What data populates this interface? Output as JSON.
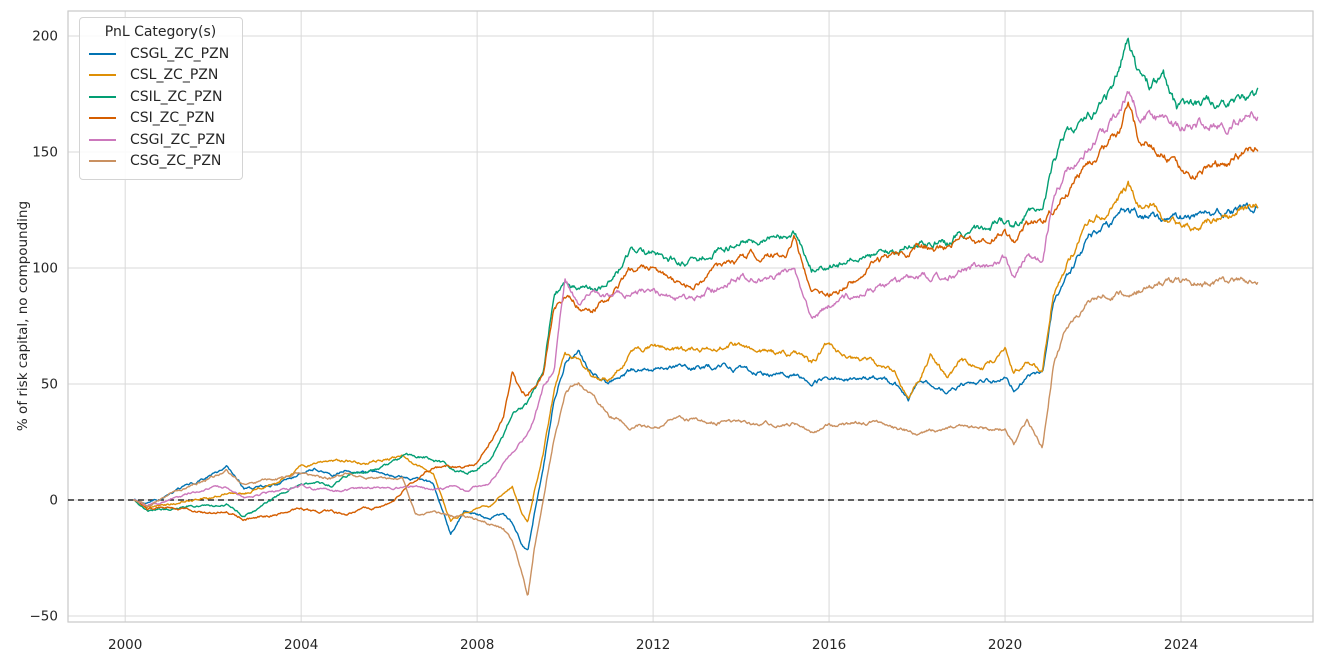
{
  "figure": {
    "background": "#ffffff",
    "grid_color": "#d9d9d9",
    "spine_color": "#c9c9c9",
    "text_color": "#262626"
  },
  "legend": {
    "title": "PnL Category(s)"
  },
  "chart_data": {
    "type": "line",
    "title": "",
    "xlabel": "",
    "ylabel": "% of risk capital, no compounding",
    "xlim": [
      1998.7,
      2027.0
    ],
    "ylim": [
      -52.6,
      210.8
    ],
    "x_ticks": [
      2000,
      2004,
      2008,
      2012,
      2016,
      2020,
      2024
    ],
    "y_ticks": [
      -50,
      0,
      50,
      100,
      150,
      200
    ],
    "grid": true,
    "legend_position": "upper left",
    "legend_title": "PnL Category(s)",
    "zero_line": {
      "y": 0,
      "style": "dashed",
      "color": "#000000"
    },
    "x": [
      2000.2,
      2000.5,
      2001,
      2001.5,
      2002,
      2002.3,
      2002.7,
      2003,
      2003.5,
      2004,
      2004.3,
      2004.7,
      2005,
      2005.5,
      2006,
      2006.3,
      2006.6,
      2007,
      2007.4,
      2007.7,
      2008,
      2008.3,
      2008.6,
      2008.8,
      2009,
      2009.15,
      2009.3,
      2009.5,
      2009.75,
      2010,
      2010.3,
      2010.6,
      2011,
      2011.5,
      2012,
      2012.5,
      2013,
      2013.5,
      2014,
      2014.5,
      2015,
      2015.2,
      2015.6,
      2016,
      2016.5,
      2017,
      2017.5,
      2017.8,
      2018,
      2018.3,
      2018.7,
      2019,
      2019.5,
      2020,
      2020.2,
      2020.5,
      2020.85,
      2021.1,
      2021.4,
      2021.9,
      2022.3,
      2022.6,
      2022.8,
      2023,
      2023.3,
      2023.6,
      2023.9,
      2024.3,
      2024.7,
      2025,
      2025.4,
      2025.75
    ],
    "series": [
      {
        "name": "CSGL_ZC_PZN",
        "color": "#0173b2",
        "values": [
          0,
          -2,
          2,
          7,
          11,
          14,
          5,
          5,
          7,
          12,
          14,
          11,
          13,
          12,
          11,
          10,
          9,
          7,
          -15,
          -5,
          -6,
          -8,
          -6,
          -10,
          -18,
          -22,
          -6,
          14,
          44,
          60,
          63,
          54,
          51,
          56,
          56,
          57,
          57,
          58,
          56,
          55,
          54,
          54,
          51,
          53,
          52,
          53,
          50,
          43,
          49,
          50,
          47,
          50,
          51,
          52,
          47,
          53,
          55,
          86,
          96,
          113,
          118,
          122,
          125,
          123,
          122,
          121,
          121,
          123,
          123,
          123,
          125,
          126
        ]
      },
      {
        "name": "CSL_ZC_PZN",
        "color": "#de8f05",
        "values": [
          0,
          -3,
          -2,
          0,
          1,
          3,
          2,
          5,
          8,
          14,
          15,
          16,
          17,
          16,
          18,
          19,
          15,
          12,
          -10,
          -6,
          -4,
          -3,
          3,
          6,
          -5,
          -10,
          4,
          20,
          47,
          64,
          60,
          53,
          52,
          64,
          66,
          65,
          65,
          67,
          67,
          64,
          63,
          64,
          59,
          68,
          60,
          60,
          55,
          44,
          50,
          62,
          53,
          60,
          57,
          64,
          55,
          60,
          56,
          90,
          102,
          118,
          125,
          130,
          136,
          128,
          128,
          123,
          120,
          118,
          122,
          122,
          125,
          127
        ]
      },
      {
        "name": "CSIL_ZC_PZN",
        "color": "#029e73",
        "values": [
          0,
          -5,
          -4,
          -2,
          -3,
          -2,
          -7,
          -4,
          2,
          7,
          7,
          6,
          10,
          12,
          16,
          19,
          19,
          18,
          14,
          12,
          13,
          18,
          28,
          38,
          40,
          42,
          48,
          55,
          89,
          92,
          90,
          90,
          94,
          106,
          107,
          103,
          103,
          108,
          111,
          112,
          113,
          115,
          100,
          100,
          103,
          105,
          108,
          109,
          113,
          112,
          111,
          116,
          117,
          120,
          117,
          124,
          122,
          145,
          158,
          164,
          172,
          185,
          200,
          185,
          178,
          182,
          168,
          170,
          172,
          170,
          172,
          176
        ]
      },
      {
        "name": "CSI_ZC_PZN",
        "color": "#d55e00",
        "values": [
          0,
          -4,
          -3,
          -4,
          -6,
          -5,
          -8,
          -8,
          -6,
          -4,
          -5,
          -5,
          -6,
          -4,
          -2,
          4,
          8,
          14,
          15,
          14,
          16,
          25,
          35,
          55,
          45,
          45,
          50,
          55,
          84,
          88,
          83,
          81,
          88,
          100,
          100,
          94,
          94,
          100,
          104,
          106,
          106,
          113,
          90,
          88,
          95,
          101,
          105,
          106,
          110,
          109,
          108,
          113,
          112,
          115,
          110,
          120,
          118,
          126,
          134,
          145,
          152,
          160,
          171,
          158,
          153,
          150,
          143,
          142,
          146,
          145,
          148,
          151
        ]
      },
      {
        "name": "CSGI_ZC_PZN",
        "color": "#cc78bc",
        "values": [
          0,
          -2,
          0,
          3,
          6,
          5,
          1,
          2,
          4,
          6,
          5,
          4,
          4,
          5,
          5,
          6,
          6,
          4,
          6,
          4,
          6,
          8,
          15,
          20,
          25,
          28,
          35,
          48,
          56,
          95,
          84,
          89,
          87,
          90,
          90,
          87,
          88,
          92,
          96,
          96,
          97,
          101,
          79,
          84,
          88,
          92,
          94,
          95,
          97,
          96,
          96,
          99,
          101,
          104,
          95,
          105,
          103,
          131,
          141,
          155,
          160,
          168,
          176,
          168,
          166,
          163,
          161,
          162,
          163,
          162,
          164,
          167
        ]
      },
      {
        "name": "CSG_ZC_PZN",
        "color": "#ca9161",
        "values": [
          0,
          -3,
          2,
          6,
          10,
          13,
          7,
          8,
          9,
          12,
          10,
          9,
          11,
          10,
          9,
          9,
          -7,
          -5,
          -7,
          -7,
          -8,
          -10,
          -13,
          -18,
          -30,
          -42,
          -20,
          0,
          27,
          46,
          51,
          45,
          36,
          32,
          32,
          34,
          35,
          34,
          33,
          33,
          32,
          33,
          29,
          32,
          33,
          33,
          31,
          30,
          29,
          30,
          30,
          32,
          31,
          31,
          25,
          35,
          22,
          58,
          75,
          86,
          88,
          89,
          89,
          91,
          91,
          93,
          94,
          93,
          94,
          94,
          94,
          94
        ]
      }
    ]
  }
}
